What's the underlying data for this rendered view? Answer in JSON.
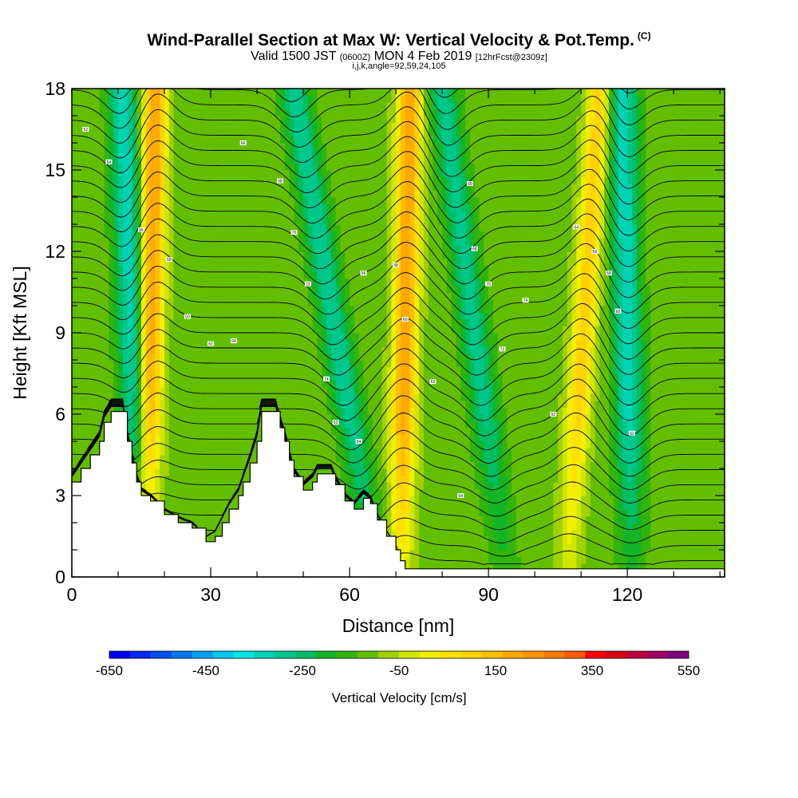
{
  "header": {
    "title": "Wind-Parallel Section at Max W: Vertical Velocity & Pot.Temp.",
    "title_tag": "(C)",
    "subtitle_a": "Valid 1500 JST",
    "subtitle_b": "(0600Z)",
    "subtitle_c": "MON 4 Feb 2019",
    "subtitle_d": "[12hrFcst@2309z]",
    "subsubtitle": "i,j,k,angle=92,59,24,105"
  },
  "chart_data": {
    "type": "heatmap",
    "title": "Wind-Parallel Section at Max W: Vertical Velocity & Pot.Temp.",
    "xlabel": "Distance [nm]",
    "ylabel": "Height [Kft MSL]",
    "xlim": [
      0,
      141
    ],
    "ylim": [
      0,
      18
    ],
    "x_ticks": [
      0,
      30,
      60,
      90,
      120
    ],
    "y_ticks": [
      0,
      3,
      6,
      9,
      12,
      15,
      18
    ],
    "x_minor_step": 10,
    "y_minor_step": 1,
    "updraft_axes": [
      {
        "x_top": 18,
        "x_bottom": 16,
        "w_max": 380
      },
      {
        "x_top": 73,
        "x_bottom": 71,
        "w_max": 370
      },
      {
        "x_top": 114,
        "x_bottom": 107,
        "w_max": 250
      }
    ],
    "downdraft_axes": [
      {
        "x_top": 11,
        "x_bottom": 15,
        "w_min": -260
      },
      {
        "x_top": 48,
        "x_bottom": 66,
        "w_min": -220
      },
      {
        "x_top": 80,
        "x_bottom": 94,
        "w_min": -200
      },
      {
        "x_top": 119,
        "x_bottom": 121,
        "w_min": -260
      }
    ],
    "terrain": [
      [
        0,
        3.5
      ],
      [
        2,
        4.0
      ],
      [
        4,
        4.5
      ],
      [
        6,
        5.0
      ],
      [
        7,
        5.7
      ],
      [
        8.5,
        6.1
      ],
      [
        11,
        6.1
      ],
      [
        12,
        5.0
      ],
      [
        13,
        4.2
      ],
      [
        14,
        3.5
      ],
      [
        15,
        3.0
      ],
      [
        17,
        2.8
      ],
      [
        20,
        2.3
      ],
      [
        23,
        2.0
      ],
      [
        26,
        1.8
      ],
      [
        29,
        1.3
      ],
      [
        31,
        1.5
      ],
      [
        32.5,
        2.0
      ],
      [
        34,
        2.5
      ],
      [
        36,
        3.0
      ],
      [
        37,
        3.5
      ],
      [
        38.5,
        4.2
      ],
      [
        40,
        5.0
      ],
      [
        41,
        6.1
      ],
      [
        44,
        6.1
      ],
      [
        45,
        5.5
      ],
      [
        46,
        5.0
      ],
      [
        47,
        4.3
      ],
      [
        48,
        3.7
      ],
      [
        50,
        3.2
      ],
      [
        52,
        3.5
      ],
      [
        53,
        3.8
      ],
      [
        56,
        3.8
      ],
      [
        57,
        3.4
      ],
      [
        59,
        2.8
      ],
      [
        61,
        2.5
      ],
      [
        63,
        2.9
      ],
      [
        64.5,
        2.7
      ],
      [
        66,
        2.1
      ],
      [
        68,
        1.5
      ],
      [
        70,
        1.0
      ],
      [
        71,
        0.6
      ],
      [
        72,
        0.3
      ],
      [
        76,
        0.3
      ],
      [
        141,
        0.3
      ]
    ],
    "theta_contour_count": 34,
    "contour_labels": [
      "52",
      "54",
      "56",
      "58",
      "60",
      "62",
      "64",
      "66",
      "68",
      "70",
      "72",
      "74"
    ]
  },
  "colorbar": {
    "min": -650,
    "max": 550,
    "step": 50,
    "labels": [
      "-650",
      "-450",
      "-250",
      "-50",
      "150",
      "350",
      "550"
    ],
    "label_values": [
      -650,
      -450,
      -250,
      -50,
      150,
      350,
      550
    ],
    "title": "Vertical Velocity [cm/s]",
    "colors": [
      "#0000f0",
      "#0028f0",
      "#0050f0",
      "#0078f0",
      "#00a0f0",
      "#00c8f0",
      "#00e6e6",
      "#00d2b4",
      "#00c88c",
      "#00be64",
      "#14b428",
      "#32b40a",
      "#64be00",
      "#a0d200",
      "#d2e600",
      "#f0f000",
      "#ffe100",
      "#ffd200",
      "#ffbe00",
      "#ffaa00",
      "#ff9600",
      "#ff7800",
      "#ff5a00",
      "#ff0000",
      "#dc0014",
      "#be003c",
      "#a00064",
      "#800080"
    ]
  }
}
